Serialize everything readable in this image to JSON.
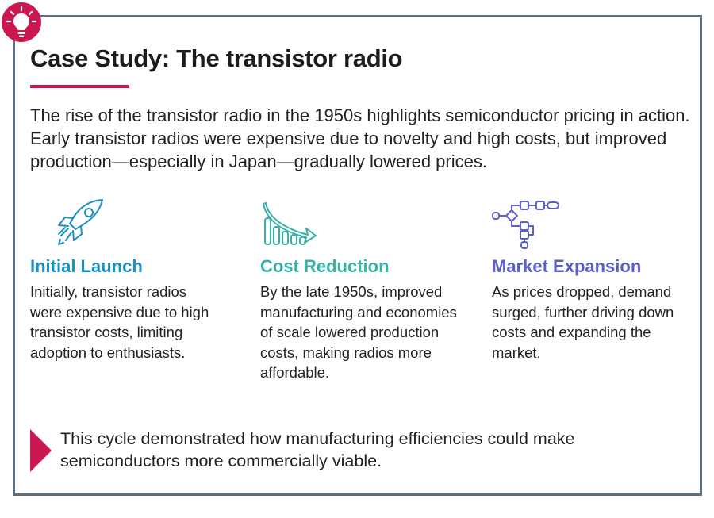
{
  "header": {
    "title": "Case Study: The transistor radio",
    "badge_icon": "lightbulb-icon",
    "accent": "#c8184f",
    "border_color": "#5e6f7d"
  },
  "intro": "The rise of the transistor radio in the 1950s highlights semiconductor pricing in action. Early transistor radios were expensive due to novelty and high costs, but improved production—especially in Japan—gradually lowered prices.",
  "columns": [
    {
      "icon": "rocket-icon",
      "color": "#1a8fc4",
      "heading": "Initial Launch",
      "body": "Initially, transistor radios were expensive due to high transistor costs, limiting adoption to enthusiasts."
    },
    {
      "icon": "declining-chart-icon",
      "color": "#35b3a7",
      "heading": "Cost Reduction",
      "body": "By the late 1950s, improved manufacturing and economies of scale lowered production costs, making radios more affordable."
    },
    {
      "icon": "network-flow-icon",
      "color": "#5b5fc7",
      "heading": "Market Expansion",
      "body": "As prices dropped, demand surged, further driving down costs and expanding the market."
    }
  ],
  "footer": {
    "icon": "triangle-arrow-icon",
    "text": "This cycle demonstrated how manufacturing efficiencies could make semiconductors more commercially viable."
  }
}
